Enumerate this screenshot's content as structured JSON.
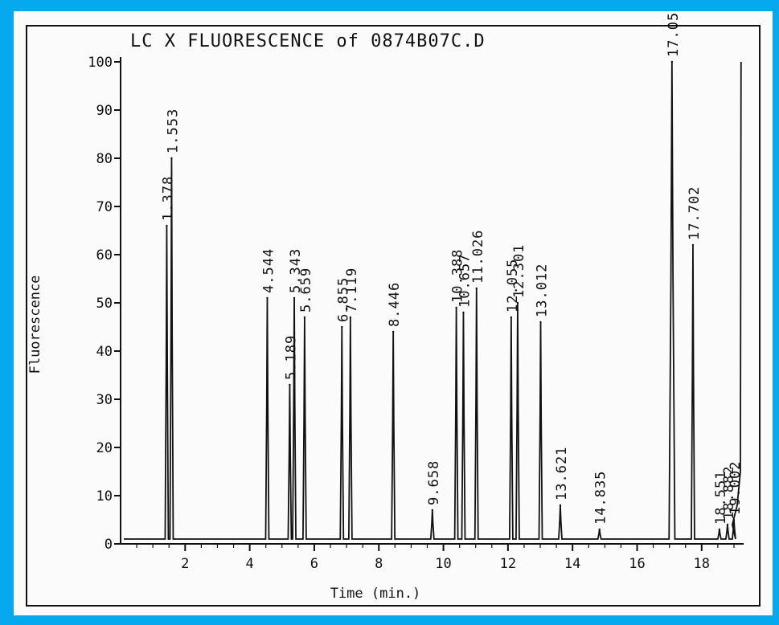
{
  "chart_data": {
    "type": "line",
    "title": "LC X FLUORESCENCE of 0874B07C.D",
    "xlabel": "Time (min.)",
    "ylabel": "Fluorescence",
    "xlim": [
      0,
      19.3
    ],
    "ylim": [
      0,
      100
    ],
    "x_ticks": [
      2,
      4,
      6,
      8,
      10,
      12,
      14,
      16,
      18
    ],
    "y_ticks": [
      0,
      10,
      20,
      30,
      40,
      50,
      60,
      70,
      80,
      90,
      100
    ],
    "y_tick_labels": [
      "0",
      "10",
      "20",
      "30",
      "40",
      "50",
      "60",
      "70",
      "80",
      "90",
      "100"
    ],
    "x_tick_labels": [
      "2",
      "4",
      "6",
      "8",
      "10",
      "12",
      "14",
      "16",
      "18"
    ],
    "grid": false,
    "baseline": 1,
    "peaks": [
      {
        "label": "1.378",
        "x": 1.43,
        "y": 66
      },
      {
        "label": "1.553",
        "x": 1.58,
        "y": 80
      },
      {
        "label": "4.544",
        "x": 4.544,
        "y": 51
      },
      {
        "label": "5.189",
        "x": 5.24,
        "y": 33
      },
      {
        "label": "5.343",
        "x": 5.38,
        "y": 51
      },
      {
        "label": "5.659",
        "x": 5.7,
        "y": 47
      },
      {
        "label": "6.855",
        "x": 6.855,
        "y": 45
      },
      {
        "label": "7.119",
        "x": 7.119,
        "y": 47
      },
      {
        "label": "8.446",
        "x": 8.446,
        "y": 44
      },
      {
        "label": "9.658",
        "x": 9.658,
        "y": 7
      },
      {
        "label": "10.388",
        "x": 10.4,
        "y": 49
      },
      {
        "label": "10.657",
        "x": 10.62,
        "y": 48
      },
      {
        "label": "11.026",
        "x": 11.026,
        "y": 53
      },
      {
        "label": "12.055",
        "x": 12.1,
        "y": 47
      },
      {
        "label": "12.301",
        "x": 12.3,
        "y": 50
      },
      {
        "label": "13.012",
        "x": 13.012,
        "y": 46
      },
      {
        "label": "13.621",
        "x": 13.621,
        "y": 8
      },
      {
        "label": "14.835",
        "x": 14.835,
        "y": 3
      },
      {
        "label": "17.05",
        "x": 17.08,
        "y": 100
      },
      {
        "label": "17.702",
        "x": 17.73,
        "y": 62
      },
      {
        "label": "18.551",
        "x": 18.55,
        "y": 3
      },
      {
        "label": "18.882",
        "x": 18.8,
        "y": 4
      },
      {
        "label": "19.002",
        "x": 19.0,
        "y": 5
      }
    ]
  }
}
